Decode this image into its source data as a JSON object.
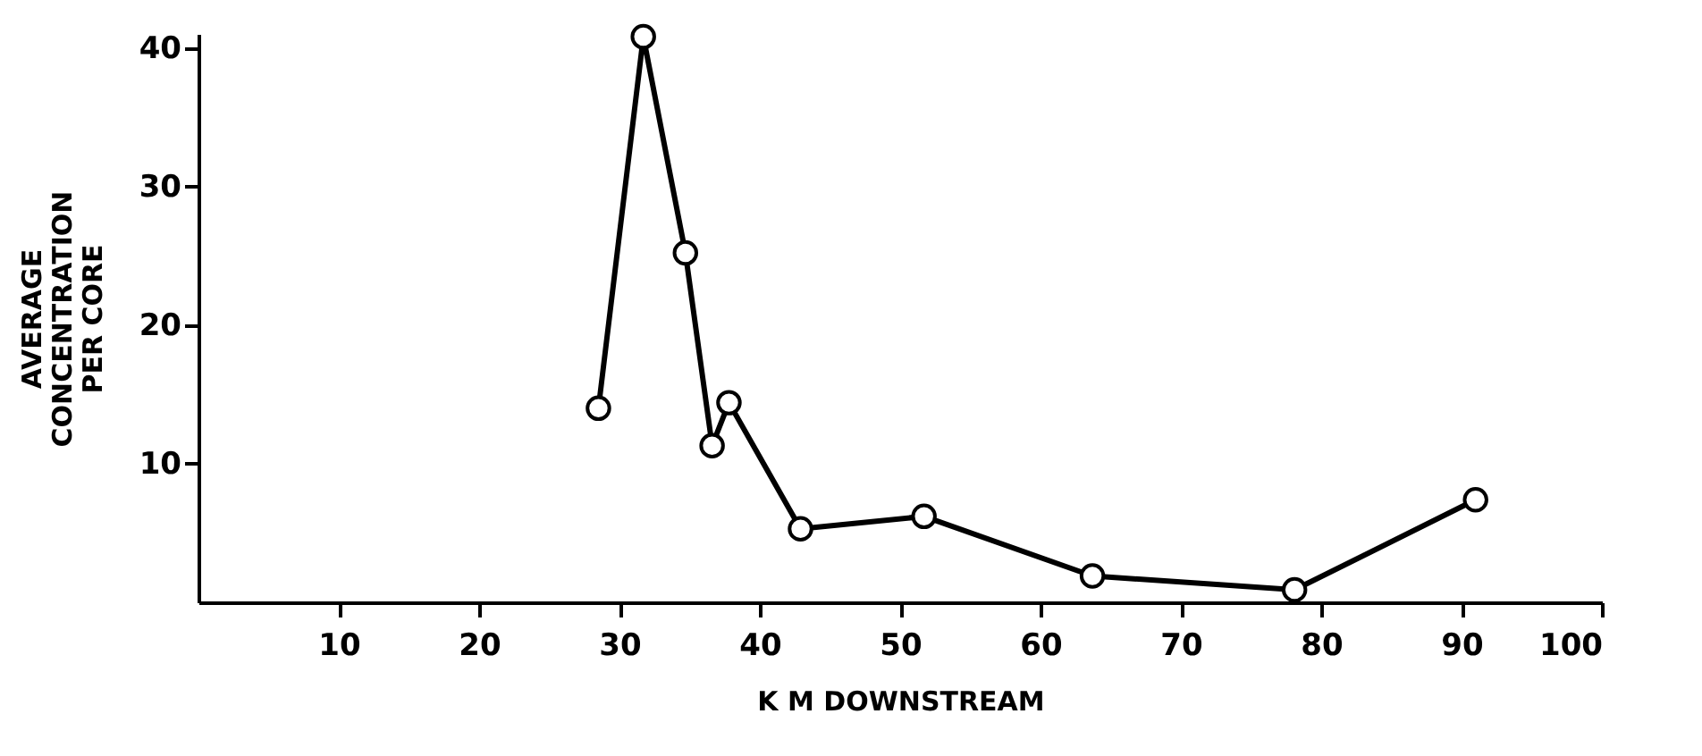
{
  "chart_data": {
    "type": "line",
    "xlabel": "K M   DOWNSTREAM",
    "ylabel": "AVERAGE\nCONCENTRATION\nPER CORE",
    "x": [
      28.5,
      31.7,
      34.7,
      36.6,
      37.8,
      42.9,
      51.7,
      63.7,
      78.1,
      91.0
    ],
    "series": [
      {
        "color": "#000000",
        "values": [
          14.0,
          40.8,
          25.2,
          11.3,
          14.4,
          5.3,
          6.2,
          1.9,
          0.9,
          7.4
        ]
      }
    ],
    "xlim": [
      0,
      100
    ],
    "xticks": [
      10,
      20,
      30,
      40,
      50,
      60,
      70,
      80,
      90,
      100
    ],
    "ylim": [
      0,
      41
    ],
    "yticks": [
      10,
      20,
      30,
      40
    ],
    "grid": false,
    "legend": false,
    "marker": "circle",
    "line_style": "solid"
  }
}
